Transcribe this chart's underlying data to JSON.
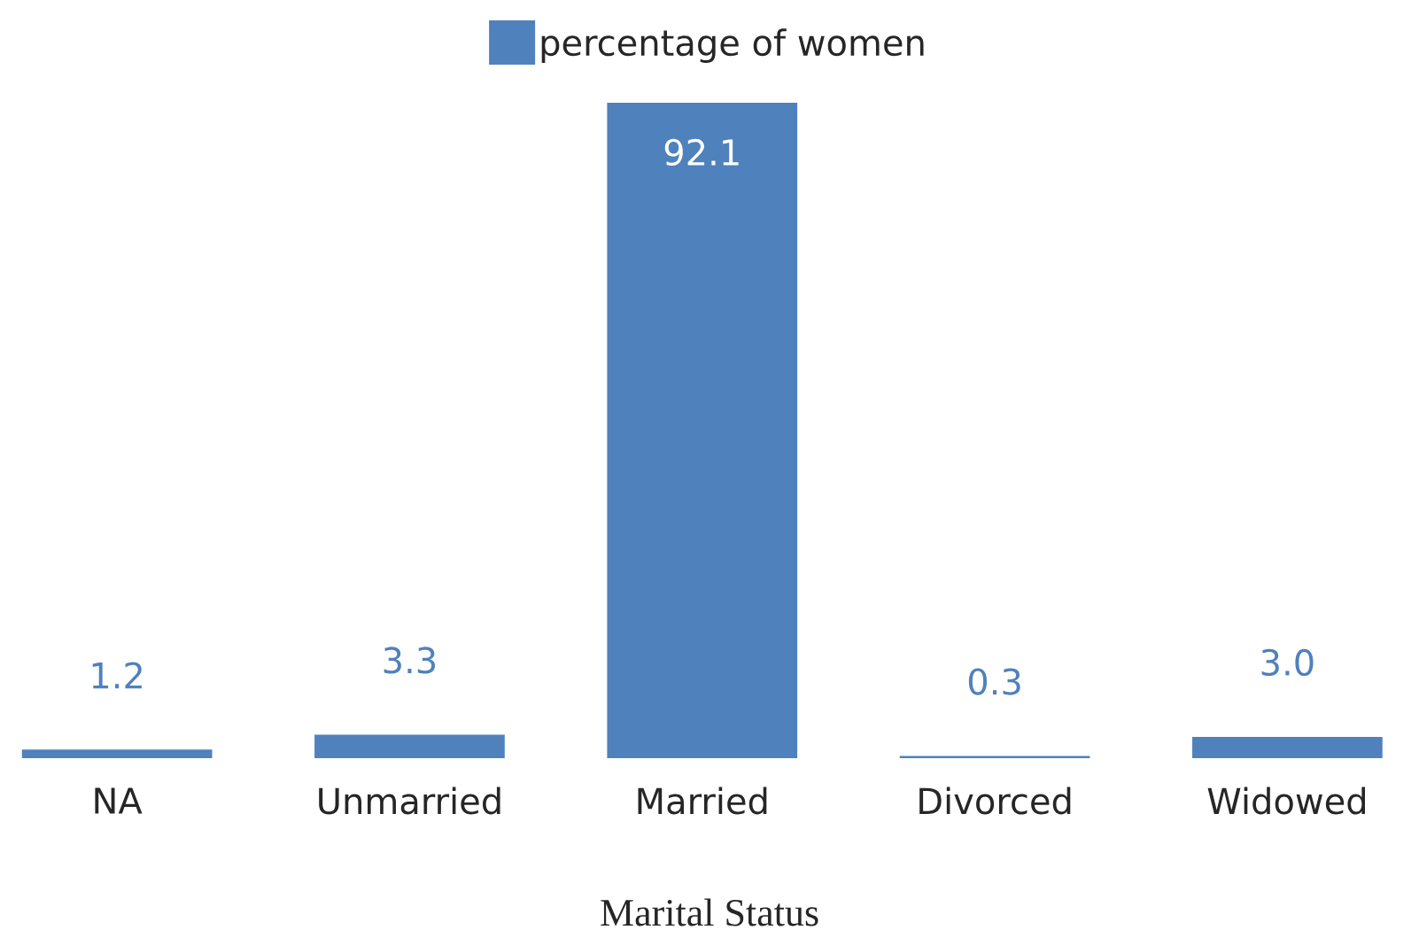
{
  "chart_data": {
    "type": "bar",
    "xlabel": "Marital Status",
    "categories": [
      "NA",
      "Unmarried",
      "Married",
      "Divorced",
      "Widowed"
    ],
    "series": [
      {
        "name": "percentage of women",
        "color": "#4f81bd",
        "values": [
          1.2,
          3.3,
          92.1,
          0.3,
          3.0
        ],
        "value_labels": [
          "1.2",
          "3.3",
          "92.1",
          "0.3",
          "3.0"
        ]
      }
    ],
    "legend": "top"
  }
}
